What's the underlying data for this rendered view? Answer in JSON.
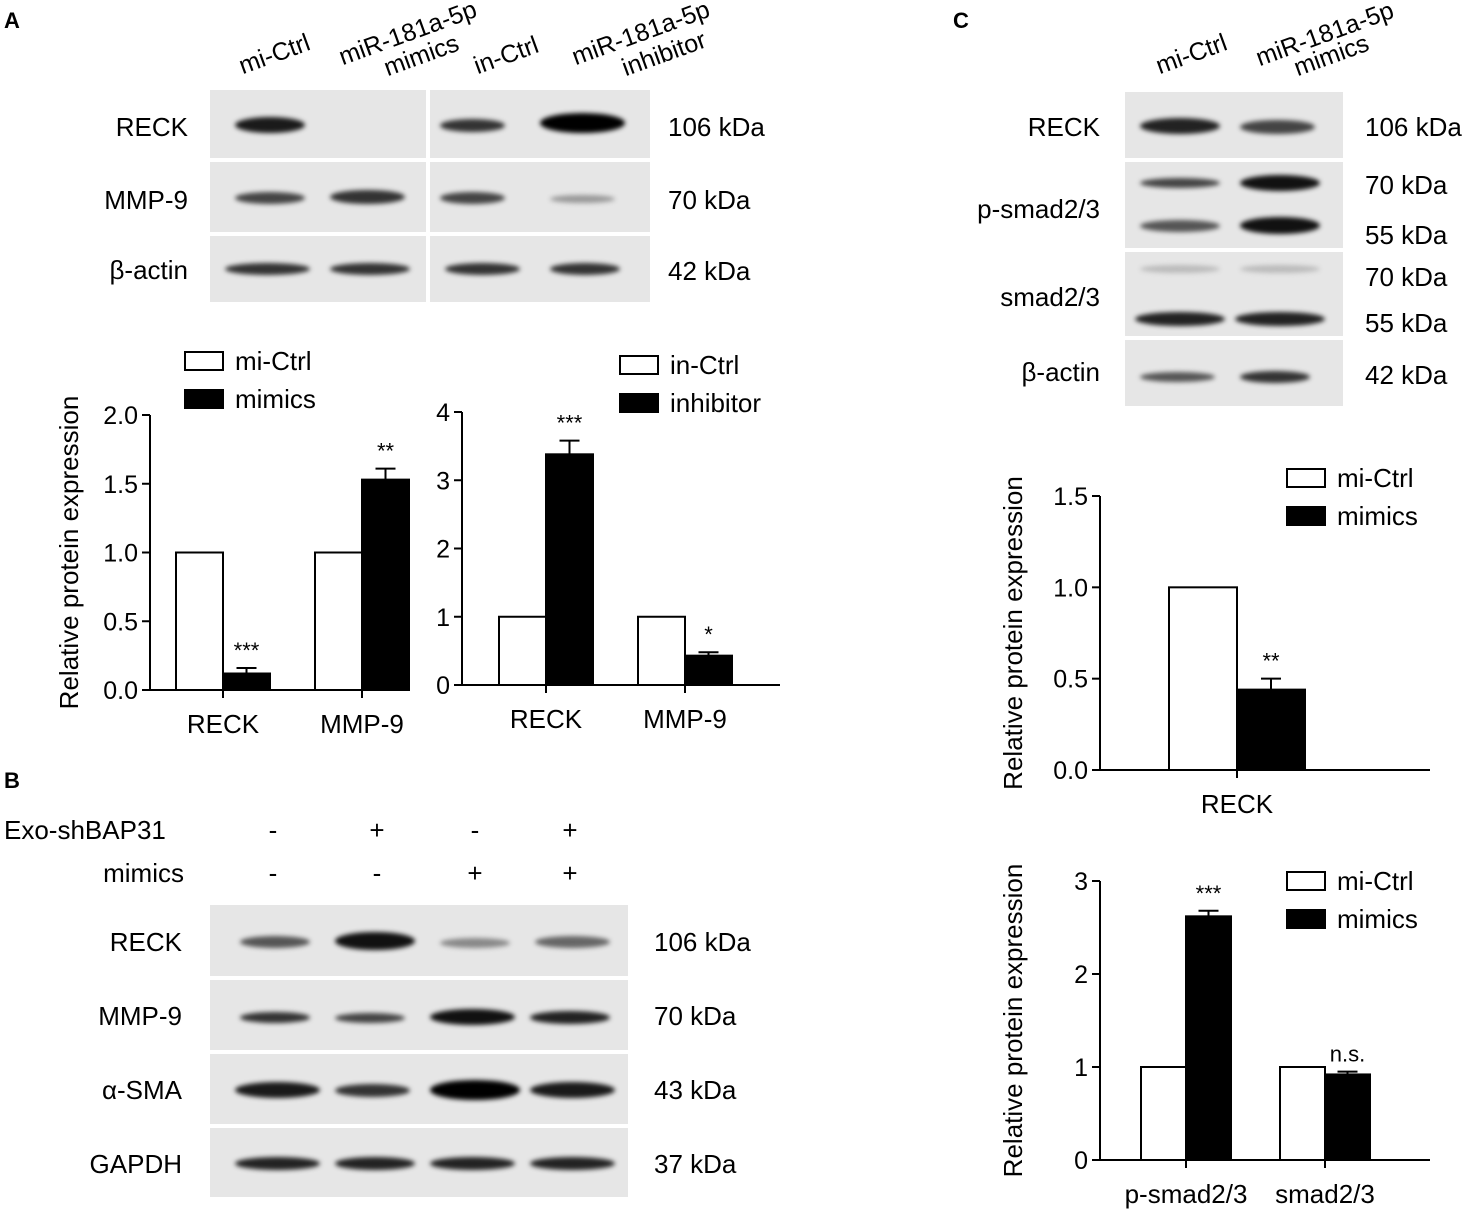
{
  "panels": {
    "a": "A",
    "b": "B",
    "c": "C"
  },
  "panel_a": {
    "lanes": [
      "mi-Ctrl",
      "miR-181a-5p",
      "mimics",
      "in-Ctrl",
      "miR-181a-5p",
      "inhibitor"
    ],
    "rows": [
      "RECK",
      "MMP-9",
      "β-actin"
    ],
    "weights": [
      "106 kDa",
      "70 kDa",
      "42 kDa"
    ]
  },
  "panel_b": {
    "conditions": [
      "Exo-shBAP31",
      "mimics"
    ],
    "signs_exo": [
      "-",
      "+",
      "-",
      "+"
    ],
    "signs_mimics": [
      "-",
      "-",
      "+",
      "+"
    ],
    "rows": [
      "RECK",
      "MMP-9",
      "α-SMA",
      "GAPDH"
    ],
    "weights": [
      "106 kDa",
      "70 kDa",
      "43 kDa",
      "37 kDa"
    ]
  },
  "panel_c": {
    "lanes": [
      "mi-Ctrl",
      "miR-181a-5p",
      "mimics"
    ],
    "rows": [
      "RECK",
      "p-smad2/3",
      "smad2/3",
      "β-actin"
    ],
    "weights": [
      "106 kDa",
      "70 kDa",
      "55 kDa",
      "70 kDa",
      "55 kDa",
      "42 kDa"
    ]
  },
  "colors": {
    "bar_control": "#ffffff",
    "bar_treatment": "#000000",
    "band": "#1a1a1a"
  },
  "chart_data": [
    {
      "id": "chartA1",
      "type": "bar",
      "ylabel": "Relative protein expression",
      "ylim": [
        0,
        2.0
      ],
      "yticks": [
        "0.0",
        "0.5",
        "1.0",
        "1.5",
        "2.0"
      ],
      "ytick_values": [
        0,
        0.5,
        1.0,
        1.5,
        2.0
      ],
      "categories": [
        "RECK",
        "MMP-9"
      ],
      "series": [
        {
          "name": "mi-Ctrl",
          "values": [
            1.0,
            1.0
          ],
          "errors": [
            0,
            0
          ],
          "fill": "#ffffff"
        },
        {
          "name": "mimics",
          "values": [
            0.12,
            1.53
          ],
          "errors": [
            0.04,
            0.08
          ],
          "fill": "#000000"
        }
      ],
      "significance": [
        "***",
        "**"
      ],
      "legend": "top"
    },
    {
      "id": "chartA2",
      "type": "bar",
      "ylabel": "",
      "ylim": [
        0,
        4
      ],
      "yticks": [
        "0",
        "1",
        "2",
        "3",
        "4"
      ],
      "ytick_values": [
        0,
        1,
        2,
        3,
        4
      ],
      "categories": [
        "RECK",
        "MMP-9"
      ],
      "series": [
        {
          "name": "in-Ctrl",
          "values": [
            1.0,
            1.0
          ],
          "errors": [
            0,
            0
          ],
          "fill": "#ffffff"
        },
        {
          "name": "inhibitor",
          "values": [
            3.38,
            0.43
          ],
          "errors": [
            0.2,
            0.05
          ],
          "fill": "#000000"
        }
      ],
      "significance": [
        "***",
        "*"
      ],
      "legend": "top"
    },
    {
      "id": "chartC1",
      "type": "bar",
      "ylabel": "Relative protein expression",
      "ylim": [
        0,
        1.5
      ],
      "yticks": [
        "0.0",
        "0.5",
        "1.0",
        "1.5"
      ],
      "ytick_values": [
        0,
        0.5,
        1.0,
        1.5
      ],
      "categories": [
        "RECK"
      ],
      "series": [
        {
          "name": "mi-Ctrl",
          "values": [
            1.0
          ],
          "errors": [
            0
          ],
          "fill": "#ffffff"
        },
        {
          "name": "mimics",
          "values": [
            0.44
          ],
          "errors": [
            0.06
          ],
          "fill": "#000000"
        }
      ],
      "significance": [
        "**"
      ],
      "legend": "top-right"
    },
    {
      "id": "chartC2",
      "type": "bar",
      "ylabel": "Relative protein expression",
      "ylim": [
        0,
        3
      ],
      "yticks": [
        "0",
        "1",
        "2",
        "3"
      ],
      "ytick_values": [
        0,
        1,
        2,
        3
      ],
      "categories": [
        "p-smad2/3",
        "smad2/3"
      ],
      "series": [
        {
          "name": "mi-Ctrl",
          "values": [
            1.0,
            1.0
          ],
          "errors": [
            0,
            0
          ],
          "fill": "#ffffff"
        },
        {
          "name": "mimics",
          "values": [
            2.62,
            0.92
          ],
          "errors": [
            0.06,
            0.03
          ],
          "fill": "#000000"
        }
      ],
      "significance": [
        "***",
        "n.s."
      ],
      "legend": "top-right"
    }
  ]
}
